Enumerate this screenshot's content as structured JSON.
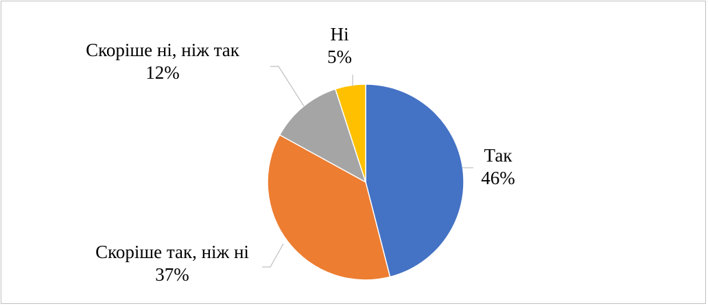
{
  "chart_data": {
    "type": "pie",
    "title": "",
    "categories": [
      "Так",
      "Скоріше так, ніж ні",
      "Скоріше ні, ніж так",
      "Ні"
    ],
    "values": [
      46,
      37,
      12,
      5
    ],
    "value_labels": [
      "46%",
      "37%",
      "12%",
      "5%"
    ],
    "colors": [
      "#4472c4",
      "#ed7d31",
      "#a5a5a5",
      "#ffc000"
    ],
    "start_angle_deg": 0,
    "direction": "clockwise",
    "legend": "none",
    "label_style": "category and percent outside with leader lines"
  }
}
